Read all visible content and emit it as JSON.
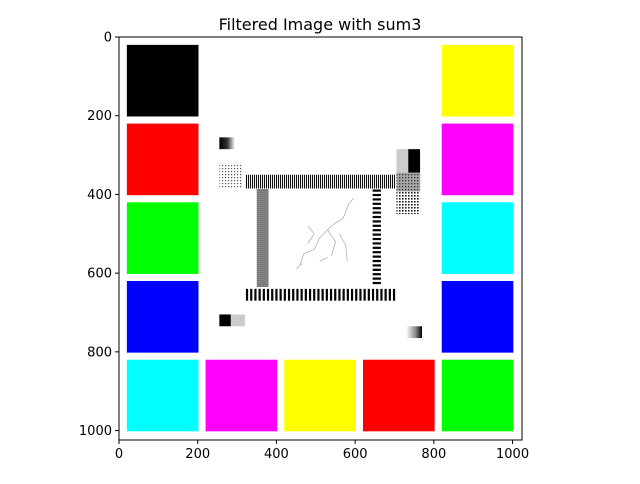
{
  "chart_data": {
    "type": "image",
    "title": "Filtered Image with sum3",
    "xlabel": "",
    "ylabel": "",
    "xlim": [
      0,
      1024
    ],
    "ylim": [
      1024,
      0
    ],
    "x_ticks": [
      0,
      200,
      400,
      600,
      800,
      1000
    ],
    "y_ticks": [
      0,
      200,
      400,
      600,
      800,
      1000
    ],
    "grid": false,
    "image_background": "#ffffff",
    "color_patches": [
      {
        "name": "black-top-left",
        "color": "#000000",
        "x": [
          20,
          202
        ],
        "y": [
          20,
          202
        ]
      },
      {
        "name": "red-left",
        "color": "#ff0000",
        "x": [
          20,
          202
        ],
        "y": [
          220,
          402
        ]
      },
      {
        "name": "green-left",
        "color": "#00ff00",
        "x": [
          20,
          202
        ],
        "y": [
          420,
          602
        ]
      },
      {
        "name": "blue-left",
        "color": "#0000ff",
        "x": [
          20,
          202
        ],
        "y": [
          620,
          802
        ]
      },
      {
        "name": "cyan-bottom-left",
        "color": "#00ffff",
        "x": [
          20,
          202
        ],
        "y": [
          820,
          1002
        ]
      },
      {
        "name": "magenta-bottom",
        "color": "#ff00ff",
        "x": [
          220,
          402
        ],
        "y": [
          820,
          1002
        ]
      },
      {
        "name": "yellow-bottom",
        "color": "#ffff00",
        "x": [
          420,
          602
        ],
        "y": [
          820,
          1002
        ]
      },
      {
        "name": "red-bottom",
        "color": "#ff0000",
        "x": [
          620,
          802
        ],
        "y": [
          820,
          1002
        ]
      },
      {
        "name": "green-bottom-right",
        "color": "#00ff00",
        "x": [
          820,
          1002
        ],
        "y": [
          820,
          1002
        ]
      },
      {
        "name": "yellow-top-right",
        "color": "#ffff00",
        "x": [
          820,
          1002
        ],
        "y": [
          20,
          202
        ]
      },
      {
        "name": "magenta-right",
        "color": "#ff00ff",
        "x": [
          820,
          1002
        ],
        "y": [
          220,
          402
        ]
      },
      {
        "name": "cyan-right",
        "color": "#00ffff",
        "x": [
          820,
          1002
        ],
        "y": [
          420,
          602
        ]
      },
      {
        "name": "blue-right",
        "color": "#0000ff",
        "x": [
          820,
          1002
        ],
        "y": [
          620,
          802
        ]
      }
    ],
    "filtered_features": [
      {
        "name": "gradient-marker-top-left",
        "kind": "gradient",
        "x": [
          255,
          295
        ],
        "y": [
          255,
          285
        ]
      },
      {
        "name": "gradient-marker-bottom-left",
        "kind": "gradient",
        "x": [
          255,
          320
        ],
        "y": [
          705,
          735
        ]
      },
      {
        "name": "gradient-marker-bottom-right",
        "kind": "gradient",
        "x": [
          730,
          770
        ],
        "y": [
          735,
          765
        ]
      },
      {
        "name": "checker-block-top-right",
        "kind": "block",
        "x": [
          705,
          765
        ],
        "y": [
          285,
          345
        ]
      },
      {
        "name": "dot-texture-left",
        "kind": "dots",
        "x": [
          255,
          315
        ],
        "y": [
          320,
          385
        ]
      },
      {
        "name": "dot-texture-right",
        "kind": "dots",
        "x": [
          705,
          765
        ],
        "y": [
          345,
          450
        ]
      },
      {
        "name": "stripe-bar-top",
        "kind": "hstripes",
        "x": [
          320,
          705
        ],
        "y": [
          350,
          385
        ]
      },
      {
        "name": "stripe-bar-left",
        "kind": "vstripes",
        "x": [
          350,
          380
        ],
        "y": [
          385,
          635
        ]
      },
      {
        "name": "stripe-bar-right",
        "kind": "vstripes-dashed",
        "x": [
          640,
          670
        ],
        "y": [
          385,
          635
        ]
      },
      {
        "name": "stripe-bar-bottom",
        "kind": "hstripes-thick",
        "x": [
          320,
          705
        ],
        "y": [
          640,
          670
        ]
      },
      {
        "name": "edge-sketch-center",
        "kind": "sketch",
        "x": [
          420,
          620
        ],
        "y": [
          400,
          600
        ]
      }
    ]
  }
}
